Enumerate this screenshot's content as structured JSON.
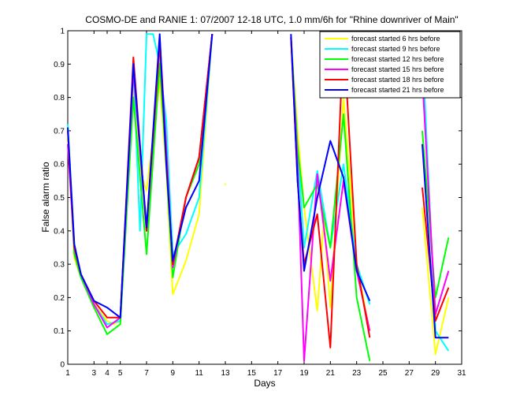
{
  "chart_data": {
    "type": "line",
    "title": "COSMO-DE and RANIE 1: 07/2007 12-18 UTC, 1.0 mm/6h for \"Rhine downriver of Main\"",
    "xlabel": "Days",
    "ylabel": "False alarm ratio",
    "xlim": [
      1,
      31
    ],
    "ylim": [
      0,
      1
    ],
    "xticks": [
      1,
      3,
      4,
      5,
      7,
      9,
      11,
      13,
      15,
      17,
      19,
      21,
      23,
      25,
      27,
      29,
      31
    ],
    "xtick_labels": [
      "1",
      "3",
      "4",
      "5",
      "7",
      "9",
      "11",
      "13",
      "15",
      "17",
      "19",
      "21",
      "23",
      "25",
      "27",
      "29",
      "31"
    ],
    "yticks": [
      0,
      0.1,
      0.2,
      0.3,
      0.4,
      0.5,
      0.6,
      0.7,
      0.8,
      0.9,
      1
    ],
    "ytick_labels": [
      "0",
      "0.1",
      "0.2",
      "0.3",
      "0.4",
      "0.5",
      "0.6",
      "0.7",
      "0.8",
      "0.9",
      "1"
    ],
    "legend_position": "top-right",
    "grid": false,
    "series": [
      {
        "name": "forecast started 6 hrs before",
        "color": "#ffff00",
        "segments": [
          [
            [
              1,
              0.68
            ],
            [
              1.5,
              0.32
            ],
            [
              2,
              0.26
            ],
            [
              3,
              0.18
            ],
            [
              4,
              0.13
            ],
            [
              4.5,
              0.12
            ],
            [
              5,
              0.13
            ],
            [
              6,
              0.82
            ],
            [
              6.5,
              0.58
            ],
            [
              7,
              0.52
            ],
            [
              8,
              0.85
            ],
            [
              8.5,
              0.58
            ],
            [
              9,
              0.21
            ],
            [
              10,
              0.31
            ],
            [
              11,
              0.45
            ],
            [
              12,
              0.99
            ]
          ],
          [
            [
              13,
              0.54
            ]
          ],
          [
            [
              18,
              0.98
            ],
            [
              18.5,
              0.7
            ],
            [
              19,
              0.47
            ],
            [
              20,
              0.16
            ],
            [
              20.5,
              0.43
            ],
            [
              21,
              0.17
            ],
            [
              22,
              0.8
            ],
            [
              23,
              0.3
            ],
            [
              24,
              0.1
            ]
          ],
          [
            [
              28,
              0.47
            ],
            [
              29,
              0.03
            ],
            [
              30,
              0.2
            ]
          ]
        ]
      },
      {
        "name": "forecast started 9 hrs before",
        "color": "#00ffff",
        "segments": [
          [
            [
              1,
              0.72
            ],
            [
              1.5,
              0.36
            ],
            [
              2,
              0.27
            ],
            [
              3,
              0.18
            ],
            [
              4,
              0.12
            ],
            [
              5,
              0.13
            ],
            [
              6,
              0.89
            ],
            [
              6.5,
              0.4
            ],
            [
              7,
              0.99
            ],
            [
              7.5,
              0.99
            ],
            [
              8,
              0.9
            ],
            [
              8.5,
              0.73
            ],
            [
              9,
              0.33
            ],
            [
              10,
              0.39
            ],
            [
              11,
              0.5
            ],
            [
              12,
              0.99
            ]
          ],
          [
            [
              18,
              0.98
            ],
            [
              18.5,
              0.65
            ],
            [
              19,
              0.35
            ],
            [
              20,
              0.58
            ],
            [
              21,
              0.35
            ],
            [
              22,
              0.6
            ],
            [
              23,
              0.3
            ],
            [
              24,
              0.18
            ]
          ],
          [
            [
              28,
              0.96
            ],
            [
              29,
              0.1
            ],
            [
              30,
              0.04
            ]
          ]
        ]
      },
      {
        "name": "forecast started 12 hrs before",
        "color": "#00ff00",
        "segments": [
          [
            [
              1,
              0.71
            ],
            [
              1.5,
              0.33
            ],
            [
              2,
              0.26
            ],
            [
              3,
              0.17
            ],
            [
              4,
              0.09
            ],
            [
              5,
              0.12
            ],
            [
              6,
              0.8
            ],
            [
              7,
              0.33
            ],
            [
              8,
              0.9
            ],
            [
              8.5,
              0.6
            ],
            [
              9,
              0.26
            ],
            [
              10,
              0.5
            ],
            [
              11,
              0.6
            ],
            [
              12,
              0.99
            ]
          ],
          [
            [
              18,
              0.98
            ],
            [
              18.5,
              0.65
            ],
            [
              19,
              0.47
            ],
            [
              20,
              0.54
            ],
            [
              21,
              0.35
            ],
            [
              22,
              0.75
            ],
            [
              23,
              0.2
            ],
            [
              24,
              0.01
            ]
          ],
          [
            [
              28,
              0.7
            ],
            [
              29,
              0.2
            ],
            [
              30,
              0.38
            ]
          ]
        ]
      },
      {
        "name": "forecast started 15 hrs before",
        "color": "#ff00ff",
        "segments": [
          [
            [
              1,
              0.66
            ],
            [
              1.5,
              0.35
            ],
            [
              2,
              0.27
            ],
            [
              3,
              0.18
            ],
            [
              4,
              0.11
            ],
            [
              5,
              0.14
            ],
            [
              6,
              0.88
            ],
            [
              7,
              0.4
            ],
            [
              8,
              0.98
            ],
            [
              8.5,
              0.65
            ],
            [
              9,
              0.29
            ],
            [
              10,
              0.5
            ],
            [
              11,
              0.62
            ],
            [
              12,
              0.99
            ]
          ],
          [
            [
              18,
              0.98
            ],
            [
              18.5,
              0.6
            ],
            [
              19,
              0.01
            ],
            [
              20,
              0.57
            ],
            [
              21,
              0.25
            ],
            [
              22,
              0.55
            ],
            [
              23,
              0.28
            ],
            [
              24,
              0.1
            ]
          ],
          [
            [
              28,
              0.86
            ],
            [
              29,
              0.15
            ],
            [
              30,
              0.28
            ]
          ]
        ]
      },
      {
        "name": "forecast started 18 hrs before",
        "color": "#ff0000",
        "segments": [
          [
            [
              1,
              0.7
            ],
            [
              1.5,
              0.35
            ],
            [
              2,
              0.27
            ],
            [
              3,
              0.19
            ],
            [
              4,
              0.14
            ],
            [
              5,
              0.14
            ],
            [
              6,
              0.92
            ],
            [
              7,
              0.4
            ],
            [
              8,
              0.96
            ],
            [
              8.5,
              0.62
            ],
            [
              9,
              0.3
            ],
            [
              10,
              0.5
            ],
            [
              11,
              0.62
            ],
            [
              12,
              0.99
            ]
          ],
          [
            [
              18,
              0.98
            ],
            [
              18.5,
              0.55
            ],
            [
              19,
              0.3
            ],
            [
              20,
              0.45
            ],
            [
              21,
              0.05
            ],
            [
              22,
              0.99
            ],
            [
              23,
              0.3
            ],
            [
              24,
              0.08
            ]
          ],
          [
            [
              28,
              0.53
            ],
            [
              29,
              0.13
            ],
            [
              30,
              0.23
            ]
          ]
        ]
      },
      {
        "name": "forecast started 21 hrs before",
        "color": "#0000ff",
        "segments": [
          [
            [
              1,
              0.71
            ],
            [
              1.5,
              0.36
            ],
            [
              2,
              0.27
            ],
            [
              3,
              0.19
            ],
            [
              4,
              0.17
            ],
            [
              5,
              0.14
            ],
            [
              6,
              0.9
            ],
            [
              7,
              0.41
            ],
            [
              8,
              0.99
            ],
            [
              8.5,
              0.6
            ],
            [
              9,
              0.31
            ],
            [
              10,
              0.47
            ],
            [
              11,
              0.55
            ],
            [
              12,
              0.99
            ]
          ],
          [
            [
              18,
              0.99
            ],
            [
              18.5,
              0.55
            ],
            [
              19,
              0.28
            ],
            [
              20,
              0.5
            ],
            [
              21,
              0.67
            ],
            [
              22,
              0.56
            ],
            [
              23,
              0.28
            ],
            [
              24,
              0.19
            ]
          ],
          [
            [
              28,
              0.66
            ],
            [
              29,
              0.08
            ],
            [
              30,
              0.08
            ]
          ]
        ]
      }
    ]
  }
}
